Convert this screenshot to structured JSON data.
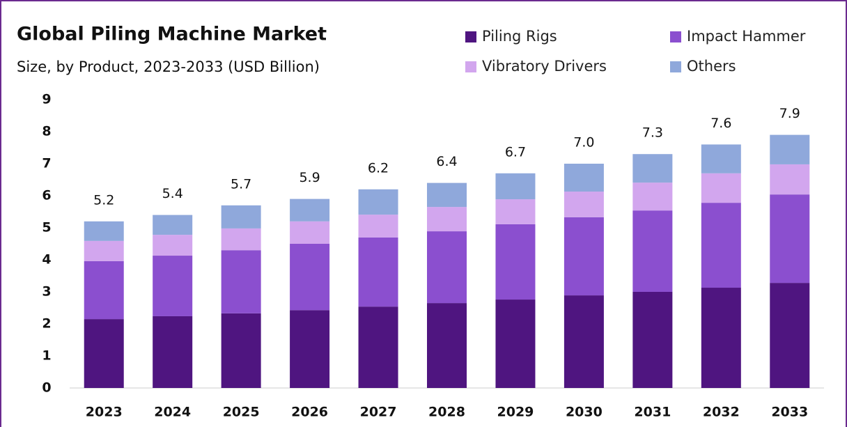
{
  "chart_data": {
    "type": "stacked_bar",
    "title": "Global Piling Machine Market",
    "subtitle": "Size, by Product, 2023-2033 (USD Billion)",
    "categories": [
      "2023",
      "2024",
      "2025",
      "2026",
      "2027",
      "2028",
      "2029",
      "2030",
      "2031",
      "2032",
      "2033"
    ],
    "series": [
      {
        "name": "Piling Rigs",
        "color": "#4f1580",
        "values": [
          2.15,
          2.24,
          2.33,
          2.43,
          2.54,
          2.65,
          2.76,
          2.89,
          3.0,
          3.13,
          3.28
        ]
      },
      {
        "name": "Impact Hammer",
        "color": "#8b4fcf",
        "values": [
          1.81,
          1.89,
          1.97,
          2.07,
          2.16,
          2.24,
          2.35,
          2.44,
          2.54,
          2.65,
          2.76
        ]
      },
      {
        "name": "Vibratory Drivers",
        "color": "#d2a6ee",
        "values": [
          0.63,
          0.65,
          0.68,
          0.7,
          0.71,
          0.76,
          0.78,
          0.8,
          0.87,
          0.92,
          0.94
        ]
      },
      {
        "name": "Others",
        "color": "#8fa8db",
        "values": [
          0.61,
          0.62,
          0.72,
          0.7,
          0.79,
          0.75,
          0.81,
          0.87,
          0.89,
          0.9,
          0.92
        ]
      }
    ],
    "totals": [
      5.2,
      5.4,
      5.7,
      5.9,
      6.2,
      6.4,
      6.7,
      7.0,
      7.3,
      7.6,
      7.9
    ],
    "totals_labels": [
      "5.2",
      "5.4",
      "5.7",
      "5.9",
      "6.2",
      "6.4",
      "6.7",
      "7.0",
      "7.3",
      "7.6",
      "7.9"
    ],
    "ylim": [
      0,
      9
    ],
    "yticks": [
      0,
      1,
      2,
      3,
      4,
      5,
      6,
      7,
      8,
      9
    ],
    "grid": false
  }
}
